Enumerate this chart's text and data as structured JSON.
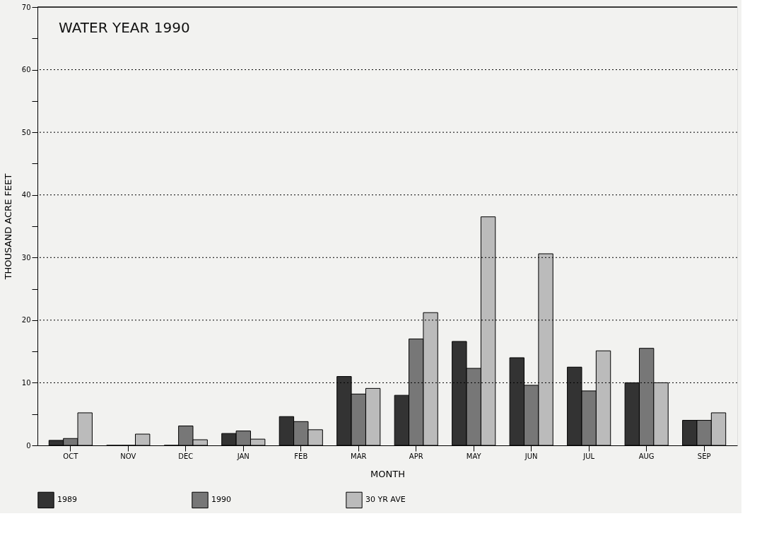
{
  "chart_data": {
    "type": "bar",
    "title": "WATER YEAR 1990",
    "xlabel": "MONTH",
    "ylabel": "THOUSAND ACRE FEET",
    "categories": [
      "OCT",
      "NOV",
      "DEC",
      "JAN",
      "FEB",
      "MAR",
      "APR",
      "MAY",
      "JUN",
      "JUL",
      "AUG",
      "SEP"
    ],
    "series": [
      {
        "name": "1989",
        "color": "#333333",
        "values": [
          0.8,
          0,
          0,
          1.9,
          4.6,
          11.0,
          8.0,
          16.6,
          14.0,
          12.5,
          10.0,
          4.0
        ]
      },
      {
        "name": "1990",
        "color": "#777777",
        "values": [
          1.1,
          0,
          3.1,
          2.3,
          3.8,
          8.2,
          17.0,
          12.3,
          9.6,
          8.7,
          15.5,
          4.0
        ]
      },
      {
        "name": "30 YR AVE",
        "color": "#bbbbbb",
        "values": [
          5.2,
          1.8,
          0.9,
          1.0,
          2.5,
          9.1,
          21.2,
          36.5,
          30.6,
          15.1,
          10.0,
          5.2
        ]
      }
    ],
    "ylim": [
      0,
      70
    ],
    "yticks": [
      0,
      {
        "value": 5,
        "label": null
      },
      10,
      {
        "value": 15,
        "label": null
      },
      20,
      {
        "value": 25,
        "label": null
      },
      30,
      {
        "value": 35,
        "label": null
      },
      40,
      {
        "value": 45,
        "label": null
      },
      50,
      {
        "value": 55,
        "label": null
      },
      60,
      {
        "value": 65,
        "label": null
      },
      70
    ],
    "grid": "y",
    "legend": "bottom"
  }
}
